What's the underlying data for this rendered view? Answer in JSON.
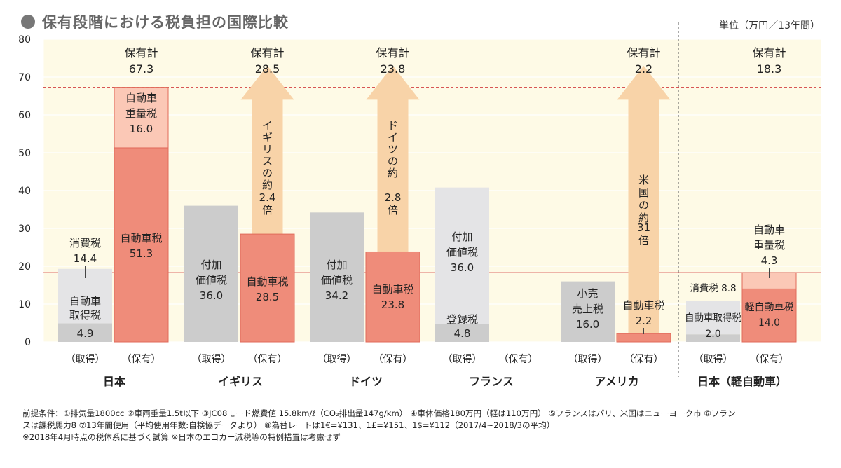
{
  "header": {
    "title": "保有段階における税負担の国際比較",
    "unit": "単位（万円／13年間）"
  },
  "chart_data": {
    "type": "bar",
    "ylim": [
      0,
      80
    ],
    "yticks": [
      0,
      10,
      20,
      30,
      40,
      50,
      60,
      70,
      80
    ],
    "grid": true,
    "reference_lines": [
      {
        "value": 67.3,
        "style": "dashed",
        "color": "#d33f3f"
      },
      {
        "value": 18.3,
        "style": "solid",
        "color": "#d33f3f"
      }
    ],
    "colors": {
      "plot_bg": "#fefae6",
      "acq_base": "#cccccc",
      "acq_top": "#e4e4e6",
      "own_base": "#ef8c7a",
      "own_top": "#fbc8b6",
      "arrow": "#f8d3a8",
      "own_border": "#e06a5a"
    },
    "groups": [
      {
        "name": "日本",
        "bars": [
          {
            "label": "（取得）",
            "kind": "acq",
            "segments": [
              {
                "name": "自動車取得税",
                "value": 4.9,
                "text": [
                  "自動車",
                  "取得税",
                  "4.9"
                ]
              },
              {
                "name": "消費税",
                "value": 14.4,
                "text": [
                  "消費税",
                  "14.4"
                ]
              }
            ]
          },
          {
            "label": "（保有）",
            "kind": "own",
            "segments": [
              {
                "name": "自動車税",
                "value": 51.3,
                "text": [
                  "自動車税",
                  "51.3"
                ]
              },
              {
                "name": "自動車重量税",
                "value": 16.0,
                "text": [
                  "自動車",
                  "重量税",
                  "16.0"
                ]
              }
            ]
          }
        ],
        "total_label": "保有計",
        "total": "67.3"
      },
      {
        "name": "イギリス",
        "bars": [
          {
            "label": "（取得）",
            "kind": "acq",
            "segments": [
              {
                "name": "付加価値税",
                "value": 36.0,
                "text": [
                  "付加",
                  "価値税",
                  "36.0"
                ]
              }
            ]
          },
          {
            "label": "（保有）",
            "kind": "own",
            "segments": [
              {
                "name": "自動車税",
                "value": 28.5,
                "text": [
                  "自動車税",
                  "28.5"
                ]
              }
            ]
          }
        ],
        "total_label": "保有計",
        "total": "28.5",
        "arrow_text": [
          "イギリスの約",
          "2.4",
          "倍"
        ]
      },
      {
        "name": "ドイツ",
        "bars": [
          {
            "label": "（取得）",
            "kind": "acq",
            "segments": [
              {
                "name": "付加価値税",
                "value": 34.2,
                "text": [
                  "付加",
                  "価値税",
                  "34.2"
                ]
              }
            ]
          },
          {
            "label": "（保有）",
            "kind": "own",
            "segments": [
              {
                "name": "自動車税",
                "value": 23.8,
                "text": [
                  "自動車税",
                  "23.8"
                ]
              }
            ]
          }
        ],
        "total_label": "保有計",
        "total": "23.8",
        "arrow_text": [
          "ドイツの約",
          "2.8",
          "倍"
        ]
      },
      {
        "name": "フランス",
        "bars": [
          {
            "label": "（取得）",
            "kind": "acq",
            "segments": [
              {
                "name": "登録税",
                "value": 4.8,
                "text": [
                  "登録税",
                  "4.8"
                ]
              },
              {
                "name": "付加価値税",
                "value": 36.0,
                "text": [
                  "付加",
                  "価値税",
                  "36.0"
                ]
              }
            ]
          },
          {
            "label": "（保有）",
            "kind": "own",
            "segments": []
          }
        ]
      },
      {
        "name": "アメリカ",
        "bars": [
          {
            "label": "（取得）",
            "kind": "acq",
            "segments": [
              {
                "name": "小売売上税",
                "value": 16.0,
                "text": [
                  "小売",
                  "売上税",
                  "16.0"
                ]
              }
            ]
          },
          {
            "label": "（保有）",
            "kind": "own",
            "segments": [
              {
                "name": "自動車税",
                "value": 2.2,
                "text": [
                  "自動車税",
                  "2.2"
                ]
              }
            ]
          }
        ],
        "total_label": "保有計",
        "total": "2.2",
        "arrow_text": [
          "米国の約",
          "31",
          "倍"
        ]
      },
      {
        "name": "日本（軽自動車）",
        "bars": [
          {
            "label": "（取得）",
            "kind": "acq",
            "segments": [
              {
                "name": "自動車取得税",
                "value": 2.0,
                "text": [
                  "自動車取得税",
                  "2.0"
                ]
              },
              {
                "name": "消費税",
                "value": 8.8,
                "text": [
                  "消費税",
                  "8.8"
                ]
              }
            ]
          },
          {
            "label": "（保有）",
            "kind": "own",
            "segments": [
              {
                "name": "軽自動車税",
                "value": 14.0,
                "text": [
                  "軽自動車税",
                  "14.0"
                ]
              },
              {
                "name": "自動車重量税",
                "value": 4.3,
                "text": [
                  "自動車",
                  "重量税",
                  "4.3"
                ]
              }
            ]
          }
        ],
        "total_label": "保有計",
        "total": "18.3"
      }
    ]
  },
  "footnotes": [
    "前提条件：①排気量1800cc ②車両重量1.5t以下 ③JC08モード燃費値 15.8km/ℓ（CO₂排出量147g/km） ④車体価格180万円（軽は110万円） ⑤フランスはパリ、米国はニューヨーク市 ⑥フラン",
    "スは課税馬力8 ⑦13年間使用（平均使用年数:自検協データより） ⑧為替レートは1€=¥131、1£=¥151、1$=¥112（2017/4~2018/3の平均）",
    "※2018年4月時点の税体系に基づく試算 ※日本のエコカー減税等の特例措置は考慮せず"
  ]
}
